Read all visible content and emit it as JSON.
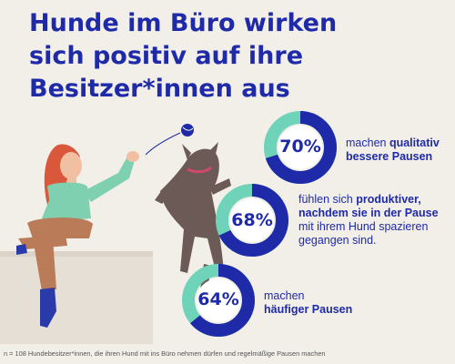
{
  "title_lines": [
    "Hunde im Büro wirken",
    "sich positiv auf ihre",
    "Besitzer*innen aus"
  ],
  "stats": [
    {
      "percent_label": "70%",
      "value": 70,
      "desc": [
        {
          "text": "machen ",
          "bold": false
        },
        {
          "text": "qualitativ",
          "bold": true
        },
        {
          "text": "\n",
          "bold": false
        },
        {
          "text": "bessere Pausen",
          "bold": true
        }
      ]
    },
    {
      "percent_label": "68%",
      "value": 68,
      "desc": [
        {
          "text": "fühlen sich ",
          "bold": false
        },
        {
          "text": "produktiver,",
          "bold": true
        },
        {
          "text": "\n",
          "bold": false
        },
        {
          "text": "nachdem sie in der Pause",
          "bold": true
        },
        {
          "text": "\n",
          "bold": false
        },
        {
          "text": "mit ihrem Hund spazieren",
          "bold": false
        },
        {
          "text": "\n",
          "bold": false
        },
        {
          "text": "gegangen sind.",
          "bold": false
        }
      ]
    },
    {
      "percent_label": "64%",
      "value": 64,
      "desc": [
        {
          "text": "machen",
          "bold": false
        },
        {
          "text": "\n",
          "bold": false
        },
        {
          "text": "häufiger Pausen",
          "bold": true
        }
      ]
    }
  ],
  "footnote": "n = 108 Hundebesitzer*innen, die ihren Hund mit ins Büro nehmen dürfen und regelmäßige Pausen machen",
  "colors": {
    "primary": "#1f2aa8",
    "accent": "#6ed3b8",
    "background": "#f2efe9"
  }
}
